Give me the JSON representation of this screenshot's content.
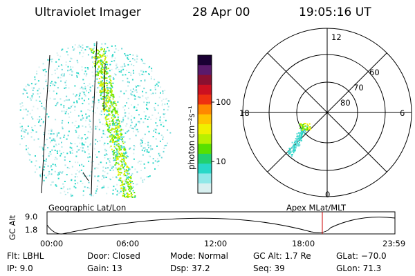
{
  "header": {
    "instrument": "Ultraviolet Imager",
    "date": "28 Apr 00",
    "time": "19:05:16 UT"
  },
  "geo_panel": {
    "label": "Geographic Lat/Lon"
  },
  "apex_panel": {
    "label": "Apex MLat/MLT",
    "mlt_labels": [
      "12",
      "18",
      "6",
      "0"
    ],
    "lat_labels": [
      "60",
      "70",
      "80"
    ]
  },
  "colorbar": {
    "unit": "photon cm⁻²s⁻¹",
    "ticks": [
      "100",
      "10"
    ],
    "colors": [
      "#1a0033",
      "#5a1a6b",
      "#8a1030",
      "#cc1020",
      "#ee3010",
      "#ff8800",
      "#ffc400",
      "#f0f000",
      "#b8f000",
      "#58e000",
      "#22d070",
      "#28d8c8",
      "#90e8e8",
      "#d8f0f0"
    ]
  },
  "altitude_plot": {
    "ylabel": "GC Alt",
    "y_ticks": [
      "9.0",
      "1.8"
    ],
    "x_ticks": [
      "00:00",
      "06:00",
      "12:00",
      "18:00",
      "23:59"
    ],
    "marker_color": "#cc0000"
  },
  "info": {
    "flt": "Flt: LBHL",
    "ip": "IP:  9.0",
    "door": "Door: Closed",
    "gain": "Gain: 13",
    "mode": "Mode: Normal",
    "dsp": "Dsp:     37.2",
    "gcalt": "GC Alt: 1.7 Re",
    "seq": "Seq: 39",
    "glat": "GLat: −70.0",
    "glon": "GLon:  71.3"
  }
}
